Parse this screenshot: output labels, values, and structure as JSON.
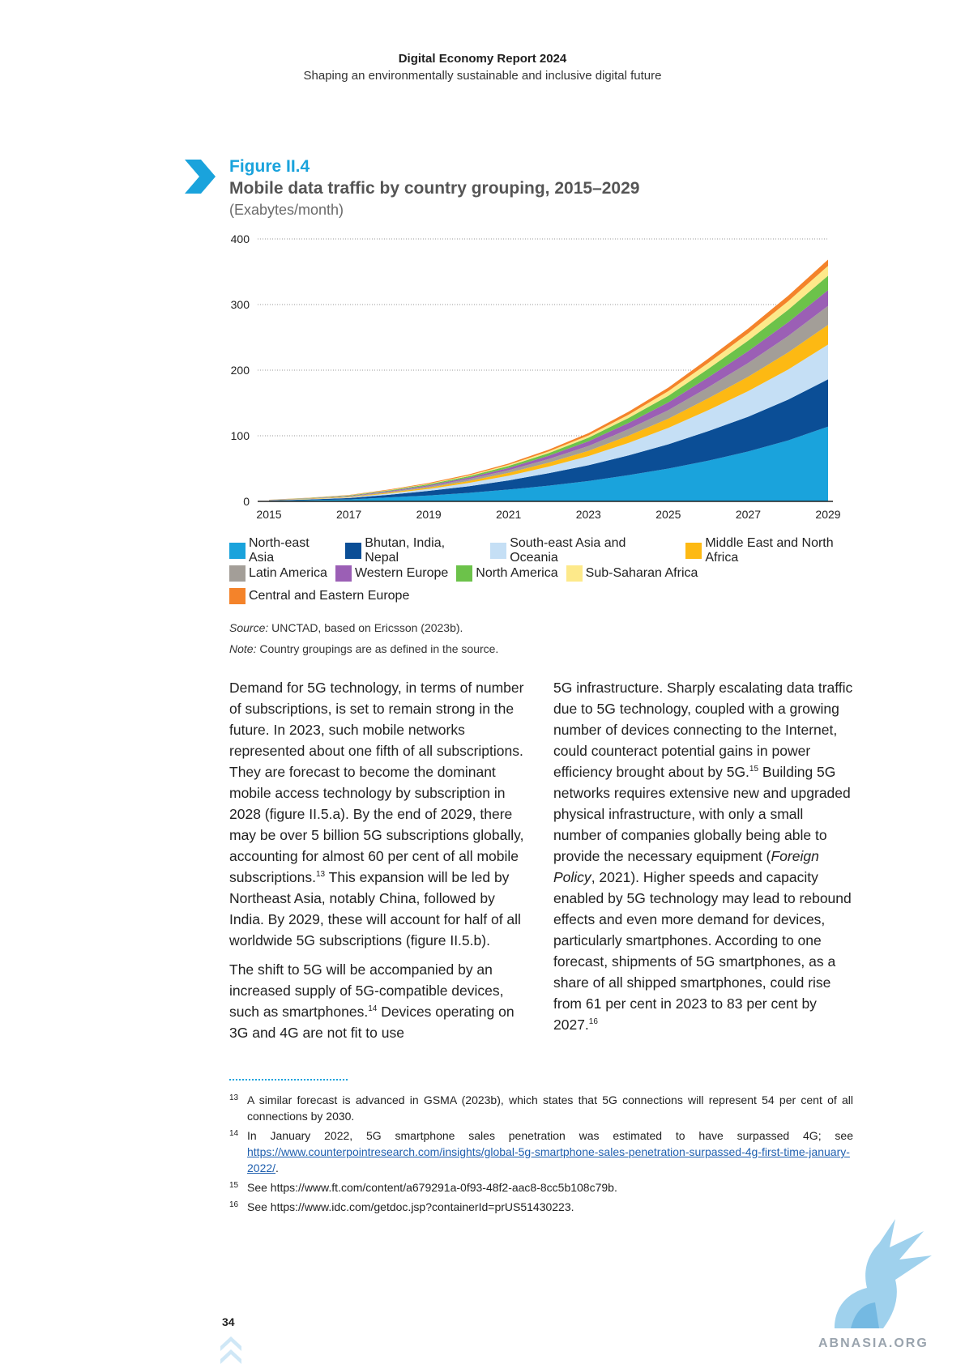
{
  "header": {
    "report_title": "Digital Economy Report 2024",
    "report_subtitle": "Shaping an environmentally sustainable and inclusive digital future"
  },
  "figure": {
    "label": "Figure II.4",
    "title": "Mobile data traffic by country grouping, 2015–2029",
    "unit": "(Exabytes/month)",
    "source_prefix": "Source:",
    "source_text": " UNCTAD, based on Ericsson (2023b).",
    "note_prefix": "Note:",
    "note_text": " Country groupings are as defined in the source."
  },
  "chart_data": {
    "type": "area",
    "stacked": true,
    "x": [
      2015,
      2016,
      2017,
      2018,
      2019,
      2020,
      2021,
      2022,
      2023,
      2024,
      2025,
      2026,
      2027,
      2028,
      2029
    ],
    "x_tick_labels": [
      "2015",
      "2017",
      "2019",
      "2021",
      "2023",
      "2025",
      "2027",
      "2029"
    ],
    "y_tick_labels": [
      "0",
      "100",
      "200",
      "300",
      "400"
    ],
    "ylim": [
      0,
      400
    ],
    "grid": "horizontal-dotted",
    "legend_placement": "bottom",
    "series": [
      {
        "name": "North-east Asia",
        "color": "#1aa3dc",
        "values": [
          1,
          2,
          3,
          6,
          9,
          13,
          18,
          24,
          31,
          40,
          50,
          62,
          76,
          93,
          114
        ]
      },
      {
        "name": "Bhutan, India, Nepal",
        "color": "#0b4e96",
        "values": [
          0.3,
          1,
          2,
          4,
          7,
          10,
          14,
          19,
          24,
          30,
          37,
          45,
          53,
          62,
          72
        ]
      },
      {
        "name": "South-east Asia and Oceania",
        "color": "#c5dff5",
        "values": [
          0.2,
          0.5,
          1,
          2,
          3,
          5,
          7,
          10,
          14,
          19,
          25,
          32,
          39,
          46,
          53
        ]
      },
      {
        "name": "Middle East and North Africa",
        "color": "#fdb913",
        "values": [
          0.2,
          0.4,
          0.8,
          1.5,
          2,
          3,
          4.5,
          6,
          8,
          11,
          14,
          18,
          22,
          26,
          30
        ]
      },
      {
        "name": "Latin America",
        "color": "#a39e98",
        "values": [
          0.2,
          0.4,
          0.7,
          1.2,
          2,
          3,
          4,
          5.5,
          7.5,
          10,
          13,
          17,
          21,
          25,
          29
        ]
      },
      {
        "name": "Western Europe",
        "color": "#9b5fb5",
        "values": [
          0.2,
          0.4,
          0.7,
          1,
          1.6,
          2.3,
          3.5,
          5,
          7,
          9.5,
          12,
          15,
          18,
          21,
          24
        ]
      },
      {
        "name": "North America",
        "color": "#6cc24a",
        "values": [
          0.2,
          0.4,
          0.7,
          1,
          1.5,
          2,
          3,
          4,
          5.5,
          7.5,
          10,
          13,
          16,
          19,
          22
        ]
      },
      {
        "name": "Sub-Saharan Africa",
        "color": "#fde98a",
        "values": [
          0.1,
          0.2,
          0.3,
          0.5,
          0.8,
          1.2,
          1.8,
          2.5,
          3.5,
          5,
          7,
          9,
          11,
          13,
          15
        ]
      },
      {
        "name": "Central and Eastern Europe",
        "color": "#f4832a",
        "values": [
          0.1,
          0.3,
          0.5,
          0.8,
          1.1,
          1.5,
          2,
          2.8,
          3.5,
          4.5,
          5.5,
          6.5,
          7.5,
          8.5,
          9.5
        ]
      }
    ]
  },
  "body": {
    "left_p1_a": "Demand for 5G technology, in terms of number of subscriptions, is set to remain strong in the future. In 2023, such mobile networks represented about one fifth of all subscriptions. They are forecast to become the dominant mobile access technology by subscription in 2028 (figure II.5.a). By the end of 2029, there may be over 5 billion 5G subscriptions globally, accounting for almost 60 per cent of all mobile subscriptions.",
    "left_p1_sup": "13",
    "left_p1_b": " This expansion will be led by Northeast Asia, notably China, followed by India. By 2029, these will account for half of all worldwide 5G subscriptions (figure II.5.b).",
    "left_p2_a": "The shift to 5G will be accompanied by an increased supply of 5G-compatible devices, such as smartphones.",
    "left_p2_sup": "14",
    "left_p2_b": " Devices operating on 3G and 4G are not fit to use",
    "right_a": "5G infrastructure. Sharply escalating data traffic due to 5G technology, coupled with a growing number of devices connecting to the Internet, could counteract potential gains in power efficiency brought about by 5G.",
    "right_sup1": "15",
    "right_b": " Building 5G networks requires extensive new and upgraded physical infrastructure, with only a small number of companies globally being able to provide the necessary equipment (",
    "right_italic": "Foreign Policy",
    "right_c": ", 2021). Higher speeds and capacity enabled by 5G technology may lead to rebound effects and even more demand for devices, particularly smartphones. According to one forecast, shipments of 5G smartphones, as a share of all shipped smartphones, could rise from 61 per cent in 2023 to 83 per cent by 2027.",
    "right_sup2": "16"
  },
  "footnotes": [
    {
      "num": "13",
      "text": "A similar forecast is advanced in GSMA (2023b), which states that 5G connections will represent 54 per cent of all connections by 2030."
    },
    {
      "num": "14",
      "text": "In January 2022, 5G smartphone sales penetration was estimated to have surpassed 4G; see ",
      "link": "https://www.counterpointresearch.com/insights/global-5g-smartphone-sales-penetration-surpassed-4g-first-time-january-2022/",
      "after": "."
    },
    {
      "num": "15",
      "text": "See https://www.ft.com/content/a679291a-0f93-48f2-aac8-8cc5b108c79b."
    },
    {
      "num": "16",
      "text": "See https://www.idc.com/getdoc.jsp?containerId=prUS51430223."
    }
  ],
  "page_number": "34",
  "watermark": "ABNASIA.ORG",
  "colors": {
    "accent": "#1aa3dc",
    "title_grey": "#555555"
  },
  "icons": {
    "figure_marker": "chevron-right-icon",
    "page_nav": "double-chevron-up-icon"
  }
}
